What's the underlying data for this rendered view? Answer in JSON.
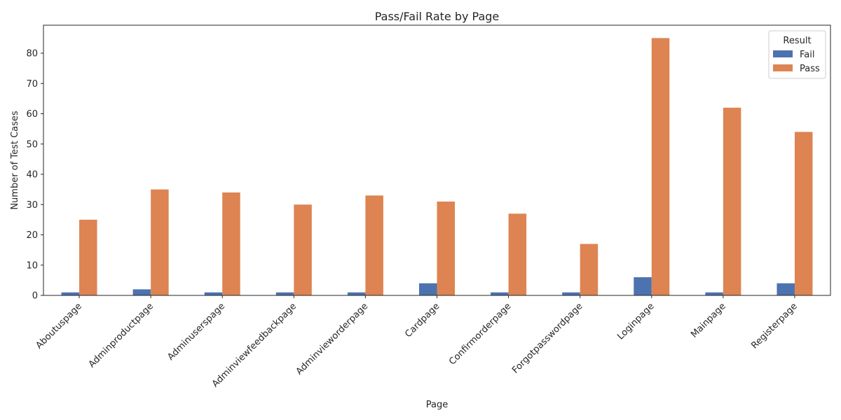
{
  "chart_data": {
    "type": "bar",
    "title": "Pass/Fail Rate by Page",
    "xlabel": "Page",
    "ylabel": "Number of Test Cases",
    "categories": [
      "Aboutuspage",
      "Adminproductpage",
      "Adminuserspage",
      "Adminviewfeedbackpage",
      "Adminvieworderpage",
      "Cardpage",
      "Confirmorderpage",
      "Forgotpasswordpage",
      "Loginpage",
      "Mainpage",
      "Registerpage"
    ],
    "series": [
      {
        "name": "Fail",
        "color": "#4c72b0",
        "values": [
          1,
          2,
          1,
          1,
          1,
          4,
          1,
          1,
          6,
          1,
          4
        ]
      },
      {
        "name": "Pass",
        "color": "#dd8452",
        "values": [
          25,
          35,
          34,
          30,
          33,
          31,
          27,
          17,
          85,
          62,
          54
        ]
      }
    ],
    "ylim": [
      0,
      89.25
    ],
    "yticks": [
      0,
      10,
      20,
      30,
      40,
      50,
      60,
      70,
      80
    ],
    "legend": {
      "title": "Result",
      "position": "top-right"
    },
    "grid": false
  }
}
